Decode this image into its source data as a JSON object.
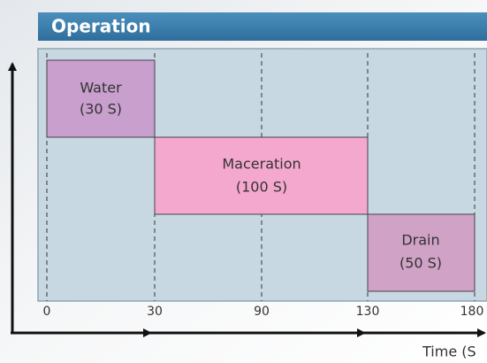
{
  "header": {
    "title": "Operation"
  },
  "blocks": [
    {
      "label": "Water",
      "duration": "(30 S)"
    },
    {
      "label": "Maceration",
      "duration": "(100 S)"
    },
    {
      "label": "Drain",
      "duration": "(50 S)"
    }
  ],
  "axis": {
    "ticks": [
      "0",
      "30",
      "90",
      "130",
      "180"
    ],
    "label": "Time (S"
  }
}
